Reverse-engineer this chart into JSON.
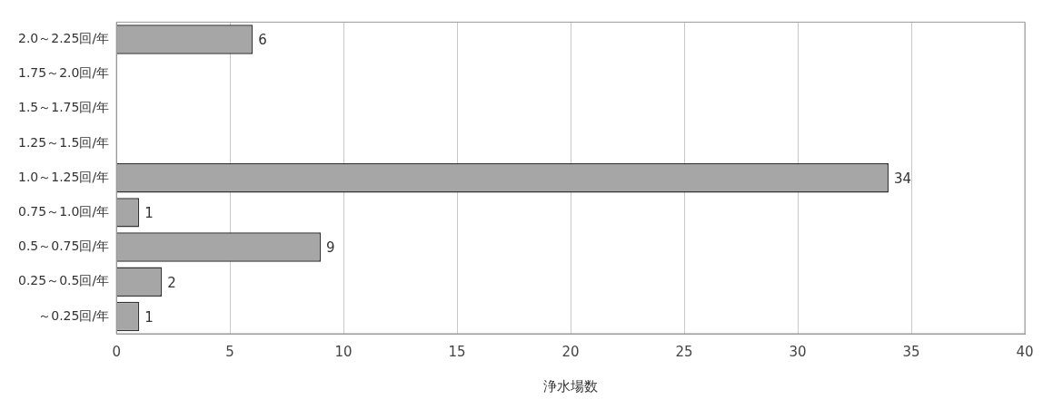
{
  "chart_data": {
    "type": "bar",
    "orientation": "horizontal",
    "xlabel": "浄水場数",
    "categories": [
      "2.0～2.25回/年",
      "1.75～2.0回/年",
      "1.5～1.75回/年",
      "1.25～1.5回/年",
      "1.0～1.25回/年",
      "0.75～1.0回/年",
      "0.5～0.75回/年",
      "0.25～0.5回/年",
      "～0.25回/年"
    ],
    "values": [
      6,
      null,
      null,
      null,
      34,
      1,
      9,
      2,
      1
    ],
    "color": "#a6a6a6",
    "xlim": [
      0,
      40
    ],
    "xticks": [
      0,
      5,
      10,
      15,
      20,
      25,
      30,
      35,
      40
    ],
    "grid": "x",
    "data_labels": true,
    "legend": false
  }
}
